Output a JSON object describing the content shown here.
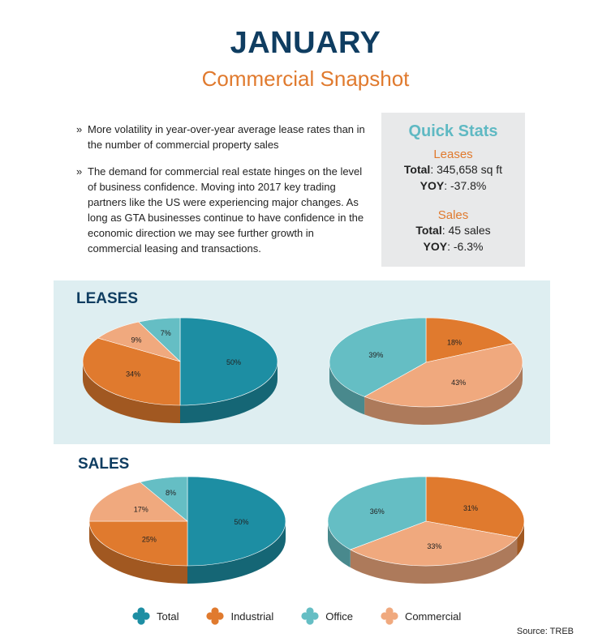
{
  "header": {
    "title": "JANUARY",
    "subtitle": "Commercial Snapshot"
  },
  "bullets": {
    "marker": "»",
    "items": [
      "More volatility in year-over-year average lease rates than in the number of commercial property sales",
      "The demand for commercial real estate hinges on the level of business confidence. Moving into 2017 key trading partners like the US were experiencing major changes. As long as GTA businesses continue to have confidence in the economic direction we may see further growth in commercial leasing and transactions."
    ]
  },
  "quick_stats": {
    "title": "Quick Stats",
    "leases": {
      "heading": "Leases",
      "total_label": "Total",
      "total_value": ": 345,658 sq ft",
      "yoy_label": "YOY",
      "yoy_value": ": -37.8%"
    },
    "sales": {
      "heading": "Sales",
      "total_label": "Total",
      "total_value": ": 45 sales",
      "yoy_label": "YOY",
      "yoy_value": ": -6.3%"
    }
  },
  "sections": {
    "leases_title": "LEASES",
    "sales_title": "SALES"
  },
  "colors": {
    "Total": "#1d8ea3",
    "Industrial": "#e07a2e",
    "Office": "#65bec4",
    "Commercial": "#f0a97e"
  },
  "chart_data": [
    {
      "type": "pie",
      "section": "LEASES",
      "categories": [
        "Total",
        "Industrial",
        "Commercial",
        "Office"
      ],
      "values": [
        50,
        34,
        9,
        7
      ],
      "labels": [
        "50%",
        "34%",
        "9%",
        "7%"
      ]
    },
    {
      "type": "pie",
      "section": "LEASES",
      "categories": [
        "Industrial",
        "Commercial",
        "Office"
      ],
      "values": [
        18,
        43,
        39
      ],
      "labels": [
        "18%",
        "43%",
        "39%"
      ]
    },
    {
      "type": "pie",
      "section": "SALES",
      "categories": [
        "Total",
        "Industrial",
        "Commercial",
        "Office"
      ],
      "values": [
        50,
        25,
        17,
        8
      ],
      "labels": [
        "50%",
        "25%",
        "17%",
        "8%"
      ]
    },
    {
      "type": "pie",
      "section": "SALES",
      "categories": [
        "Industrial",
        "Commercial",
        "Office"
      ],
      "values": [
        31,
        33,
        36
      ],
      "labels": [
        "31%",
        "33%",
        "36%"
      ]
    }
  ],
  "legend": {
    "placement": "bottom",
    "items": [
      "Total",
      "Industrial",
      "Office",
      "Commercial"
    ]
  },
  "source": "Source: TREB"
}
